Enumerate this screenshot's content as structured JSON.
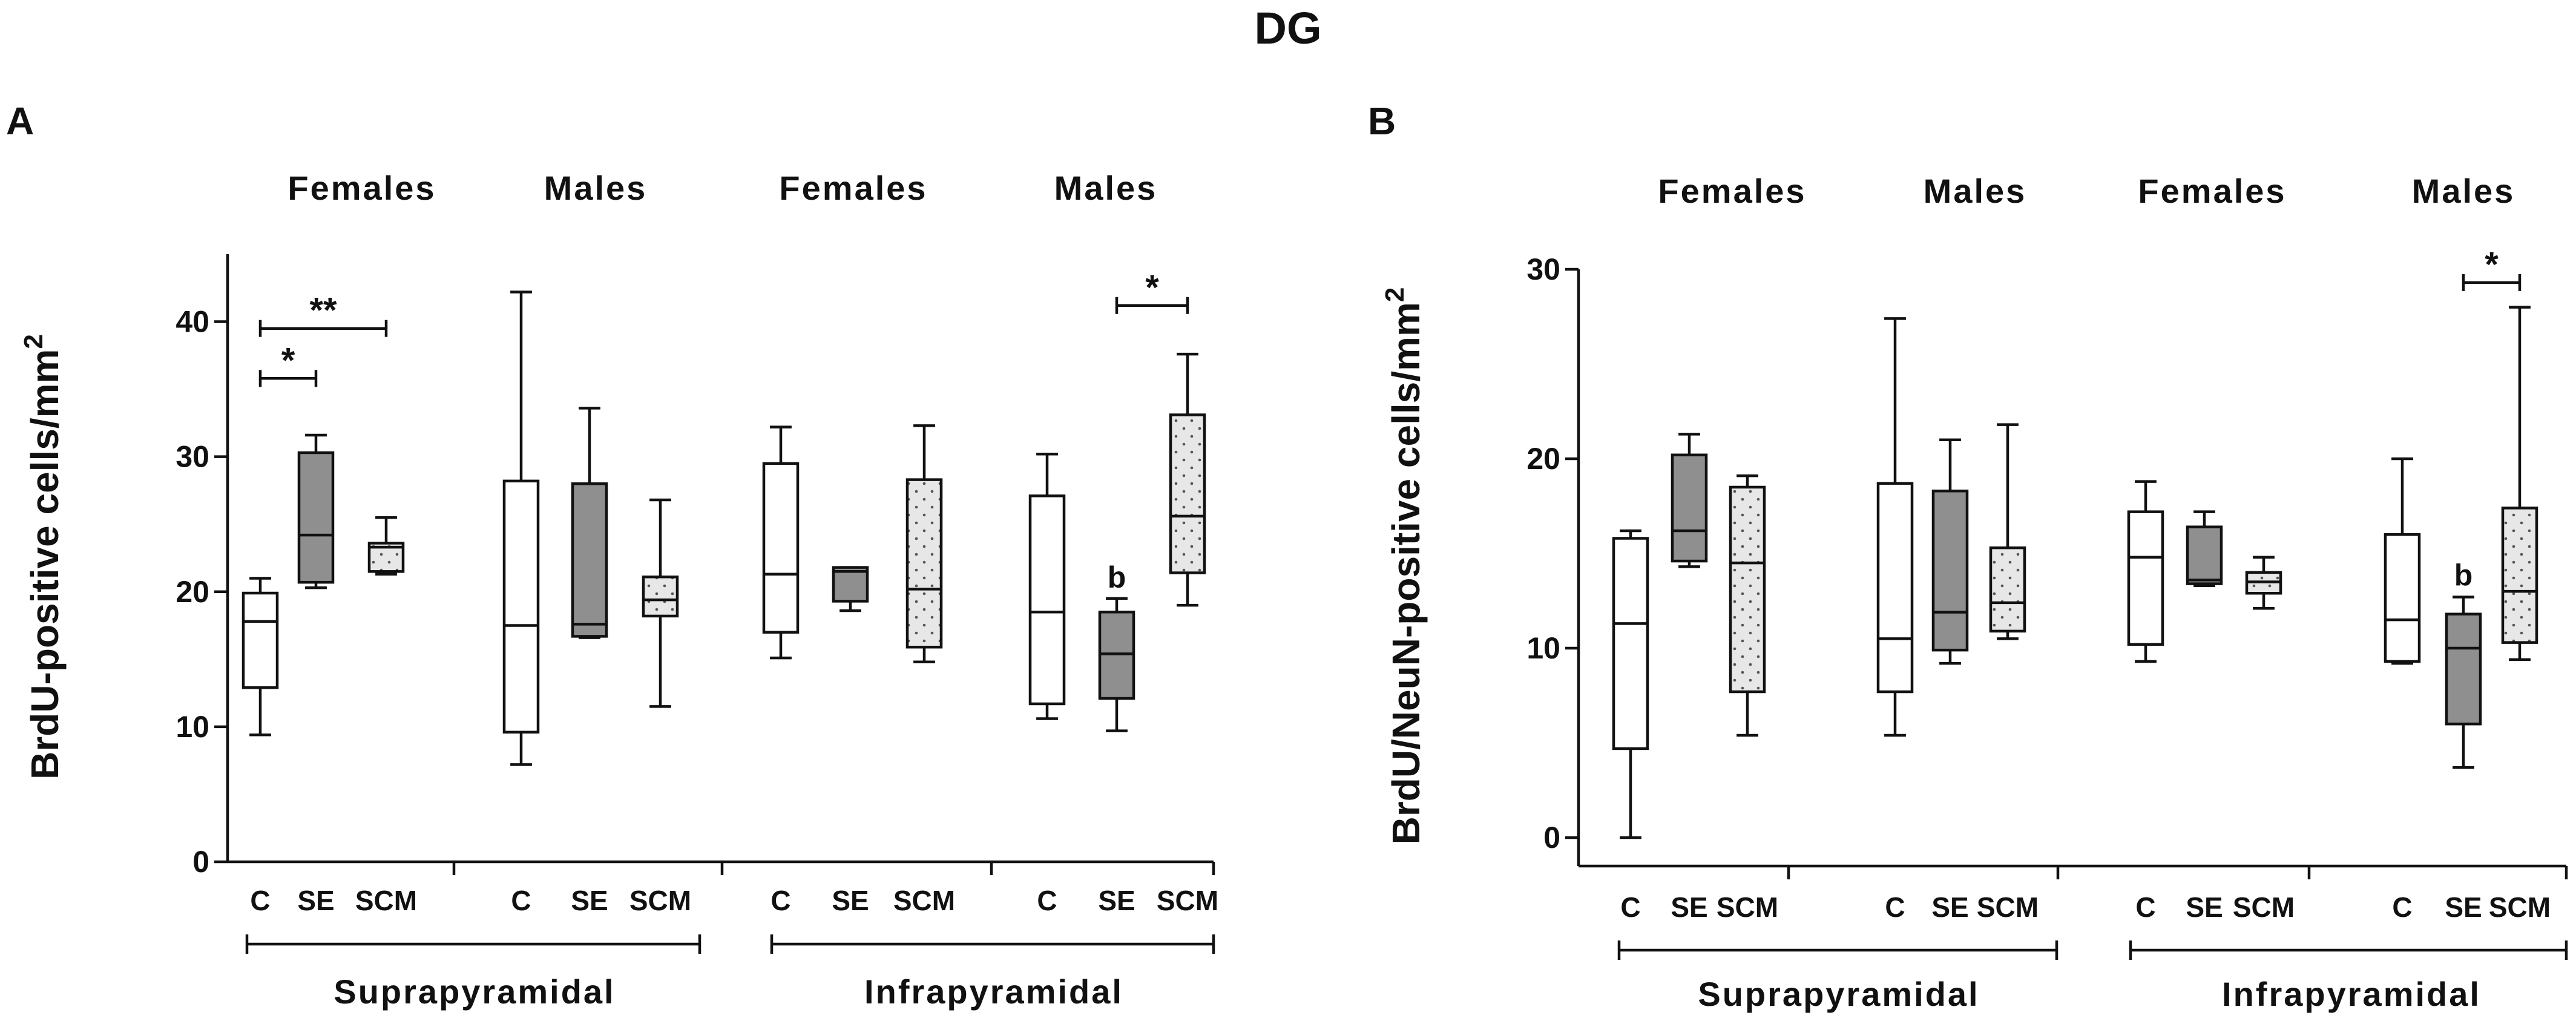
{
  "figure_title": "DG",
  "chart_data": [
    {
      "panel": "A",
      "type": "box",
      "ylabel": "BrdU-positive cells/mm",
      "ylabel_sup": "2",
      "ylim": [
        0,
        45
      ],
      "yticks": [
        0,
        10,
        20,
        30,
        40
      ],
      "categories": [
        "C",
        "SE",
        "SCM"
      ],
      "group_labels": [
        "Females",
        "Males",
        "Females",
        "Males"
      ],
      "region_labels": [
        "Suprapyramidal",
        "Infrapyramidal"
      ],
      "boxes": [
        {
          "group": 0,
          "cat": "C",
          "fill": "white",
          "min": 9.4,
          "q1": 12.9,
          "median": 17.8,
          "q3": 19.9,
          "max": 21.0
        },
        {
          "group": 0,
          "cat": "SE",
          "fill": "gray",
          "min": 20.3,
          "q1": 20.7,
          "median": 24.2,
          "q3": 30.3,
          "max": 31.6
        },
        {
          "group": 0,
          "cat": "SCM",
          "fill": "dots",
          "min": 21.3,
          "q1": 21.5,
          "median": 23.3,
          "q3": 23.6,
          "max": 25.5
        },
        {
          "group": 1,
          "cat": "C",
          "fill": "white",
          "min": 7.2,
          "q1": 9.6,
          "median": 17.5,
          "q3": 28.2,
          "max": 42.2
        },
        {
          "group": 1,
          "cat": "SE",
          "fill": "gray",
          "min": 16.6,
          "q1": 16.7,
          "median": 17.6,
          "q3": 28.0,
          "max": 33.6
        },
        {
          "group": 1,
          "cat": "SCM",
          "fill": "dots",
          "min": 11.5,
          "q1": 18.2,
          "median": 19.4,
          "q3": 21.1,
          "max": 26.8
        },
        {
          "group": 2,
          "cat": "C",
          "fill": "white",
          "min": 15.1,
          "q1": 17.0,
          "median": 21.3,
          "q3": 29.5,
          "max": 32.2
        },
        {
          "group": 2,
          "cat": "SE",
          "fill": "gray",
          "min": 18.6,
          "q1": 19.3,
          "median": 21.5,
          "q3": 21.8,
          "max": 21.8
        },
        {
          "group": 2,
          "cat": "SCM",
          "fill": "dots",
          "min": 14.8,
          "q1": 15.9,
          "median": 20.2,
          "q3": 28.3,
          "max": 32.3
        },
        {
          "group": 3,
          "cat": "C",
          "fill": "white",
          "min": 10.6,
          "q1": 11.7,
          "median": 18.5,
          "q3": 27.1,
          "max": 30.2
        },
        {
          "group": 3,
          "cat": "SE",
          "fill": "gray",
          "min": 9.7,
          "q1": 12.1,
          "median": 15.4,
          "q3": 18.5,
          "max": 19.5
        },
        {
          "group": 3,
          "cat": "SCM",
          "fill": "dots",
          "min": 19.0,
          "q1": 21.4,
          "median": 25.6,
          "q3": 33.1,
          "max": 37.6
        }
      ],
      "significance": [
        {
          "group": 0,
          "from": "C",
          "to": "SCM",
          "label": "**",
          "level": 39.5
        },
        {
          "group": 0,
          "from": "C",
          "to": "SE",
          "label": "*",
          "level": 35.8
        },
        {
          "group": 3,
          "from": "SE",
          "to": "SCM",
          "label": "*",
          "level": 41.2
        }
      ],
      "annotations": [
        {
          "group": 3,
          "cat": "SE",
          "label": "b",
          "level": 20.3
        }
      ]
    },
    {
      "panel": "B",
      "type": "box",
      "ylabel": "BrdU/NeuN-positive cells/mm",
      "ylabel_sup": "2",
      "ylim": [
        -1.5,
        30
      ],
      "yticks": [
        0,
        10,
        20,
        30
      ],
      "categories": [
        "C",
        "SE",
        "SCM"
      ],
      "group_labels": [
        "Females",
        "Males",
        "Females",
        "Males"
      ],
      "region_labels": [
        "Suprapyramidal",
        "Infrapyramidal"
      ],
      "boxes": [
        {
          "group": 0,
          "cat": "C",
          "fill": "white",
          "min": 0.0,
          "q1": 4.7,
          "median": 11.3,
          "q3": 15.8,
          "max": 16.2
        },
        {
          "group": 0,
          "cat": "SE",
          "fill": "gray",
          "min": 14.3,
          "q1": 14.6,
          "median": 16.2,
          "q3": 20.2,
          "max": 21.3
        },
        {
          "group": 0,
          "cat": "SCM",
          "fill": "dots",
          "min": 5.4,
          "q1": 7.7,
          "median": 14.5,
          "q3": 18.5,
          "max": 19.1
        },
        {
          "group": 1,
          "cat": "C",
          "fill": "white",
          "min": 5.4,
          "q1": 7.7,
          "median": 10.5,
          "q3": 18.7,
          "max": 27.4
        },
        {
          "group": 1,
          "cat": "SE",
          "fill": "gray",
          "min": 9.2,
          "q1": 9.9,
          "median": 11.9,
          "q3": 18.3,
          "max": 21.0
        },
        {
          "group": 1,
          "cat": "SCM",
          "fill": "dots",
          "min": 10.5,
          "q1": 10.9,
          "median": 12.4,
          "q3": 15.3,
          "max": 21.8
        },
        {
          "group": 2,
          "cat": "C",
          "fill": "white",
          "min": 9.3,
          "q1": 10.2,
          "median": 14.8,
          "q3": 17.2,
          "max": 18.8
        },
        {
          "group": 2,
          "cat": "SE",
          "fill": "gray",
          "min": 13.3,
          "q1": 13.4,
          "median": 13.6,
          "q3": 16.4,
          "max": 17.2
        },
        {
          "group": 2,
          "cat": "SCM",
          "fill": "dots",
          "min": 12.1,
          "q1": 12.9,
          "median": 13.5,
          "q3": 14.0,
          "max": 14.8
        },
        {
          "group": 3,
          "cat": "C",
          "fill": "white",
          "min": 9.2,
          "q1": 9.3,
          "median": 11.5,
          "q3": 16.0,
          "max": 20.0
        },
        {
          "group": 3,
          "cat": "SE",
          "fill": "gray",
          "min": 3.7,
          "q1": 6.0,
          "median": 10.0,
          "q3": 11.8,
          "max": 12.7
        },
        {
          "group": 3,
          "cat": "SCM",
          "fill": "dots",
          "min": 9.4,
          "q1": 10.3,
          "median": 13.0,
          "q3": 17.4,
          "max": 28.0
        }
      ],
      "significance": [
        {
          "group": 3,
          "from": "SE",
          "to": "SCM",
          "label": "*",
          "level": 29.3
        }
      ],
      "annotations": [
        {
          "group": 3,
          "cat": "SE",
          "label": "b",
          "level": 13.3
        }
      ]
    }
  ]
}
